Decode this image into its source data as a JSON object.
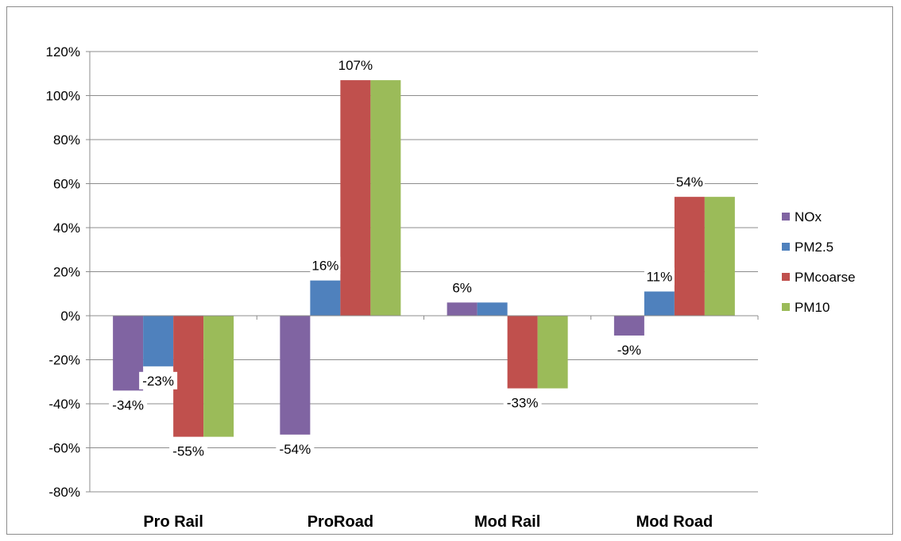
{
  "chart_data": {
    "type": "bar",
    "categories": [
      "Pro Rail",
      "ProRoad",
      "Mod Rail",
      "Mod Road"
    ],
    "series": [
      {
        "name": "NOx",
        "color": "#8064a2",
        "values": [
          -34,
          -54,
          6,
          -9
        ]
      },
      {
        "name": "PM2.5",
        "color": "#4f81bd",
        "values": [
          -23,
          16,
          6,
          11
        ]
      },
      {
        "name": "PMcoarse",
        "color": "#c0504d",
        "values": [
          -55,
          107,
          -33,
          54
        ]
      },
      {
        "name": "PM10",
        "color": "#9bbb59",
        "values": [
          -55,
          107,
          -33,
          54
        ]
      }
    ],
    "data_labels": [
      {
        "category": "Pro Rail",
        "series": "NOx",
        "text": "-34%"
      },
      {
        "category": "Pro Rail",
        "series": "PM2.5",
        "text": "-23%"
      },
      {
        "category": "Pro Rail",
        "series": "PMcoarse",
        "text": "-55%"
      },
      {
        "category": "ProRoad",
        "series": "NOx",
        "text": "-54%"
      },
      {
        "category": "ProRoad",
        "series": "PM2.5",
        "text": "16%"
      },
      {
        "category": "ProRoad",
        "series": "PMcoarse",
        "text": "107%"
      },
      {
        "category": "Mod Rail",
        "series": "NOx",
        "text": "6%"
      },
      {
        "category": "Mod Rail",
        "series": "PMcoarse",
        "text": "-33%"
      },
      {
        "category": "Mod Road",
        "series": "NOx",
        "text": "-9%"
      },
      {
        "category": "Mod Road",
        "series": "PM2.5",
        "text": "11%"
      },
      {
        "category": "Mod Road",
        "series": "PMcoarse",
        "text": "54%"
      }
    ],
    "y_ticks": [
      -80,
      -60,
      -40,
      -20,
      0,
      20,
      40,
      60,
      80,
      100,
      120
    ],
    "y_tick_labels": [
      "-80%",
      "-60%",
      "-40%",
      "-20%",
      "0%",
      "20%",
      "40%",
      "60%",
      "80%",
      "100%",
      "120%"
    ],
    "ylim": [
      -80,
      120
    ],
    "grid": true,
    "legend_position": "right",
    "title": "",
    "xlabel": "",
    "ylabel": ""
  }
}
